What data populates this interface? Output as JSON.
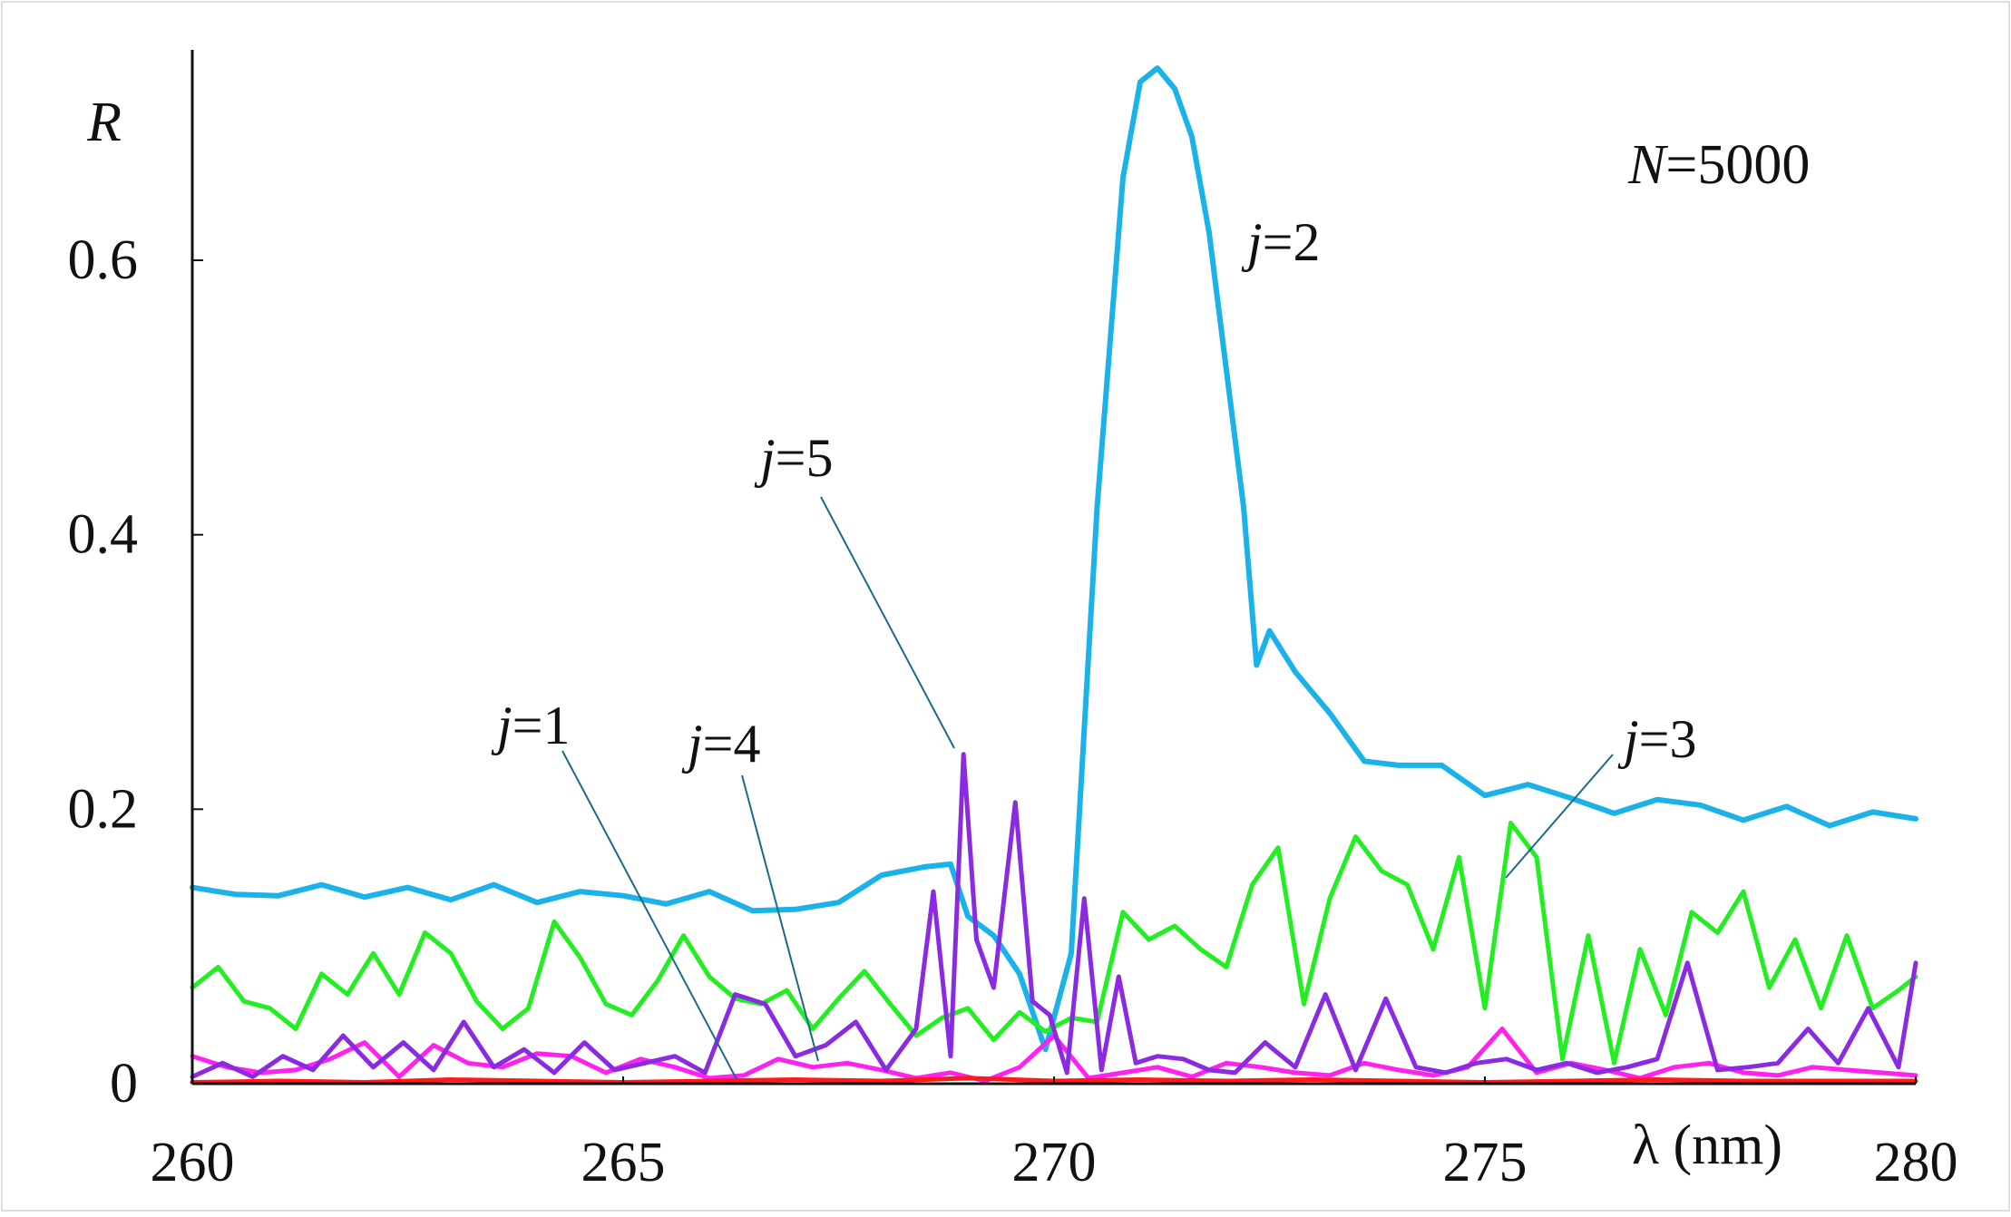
{
  "chart_data": {
    "type": "line",
    "xlabel": "λ (nm)",
    "ylabel": "R",
    "xlim": [
      260,
      280
    ],
    "ylim": [
      0,
      0.75
    ],
    "xticks": [
      "260",
      "265",
      "270",
      "275",
      "280"
    ],
    "yticks": [
      "0",
      "0.2",
      "0.4",
      "0.6"
    ],
    "annotation_text": "N=5000",
    "annotation": {
      "var": "N",
      "rest": "=5000"
    },
    "grid": false,
    "legend": "none",
    "series": [
      {
        "label": {
          "var": "j",
          "rest": "=1"
        },
        "color": "#ff1a1a",
        "x": [
          260,
          261,
          262,
          263,
          264,
          265,
          266,
          267,
          268,
          269,
          270,
          271,
          272,
          273,
          274,
          275,
          276,
          277,
          278,
          279,
          280
        ],
        "y": [
          0.001,
          0.002,
          0.001,
          0.003,
          0.002,
          0.001,
          0.002,
          0.003,
          0.002,
          0.004,
          0.002,
          0.003,
          0.002,
          0.003,
          0.002,
          0.001,
          0.002,
          0.003,
          0.002,
          0.002,
          0.002
        ]
      },
      {
        "label": {
          "var": "j",
          "rest": "=2"
        },
        "color": "#1ab2e8",
        "x": [
          260,
          260.5,
          261,
          261.5,
          262,
          262.5,
          263,
          263.5,
          264,
          264.5,
          265,
          265.5,
          266,
          266.5,
          267,
          267.5,
          268,
          268.5,
          268.8,
          269,
          269.3,
          269.6,
          269.9,
          270.2,
          270.5,
          270.8,
          271.0,
          271.2,
          271.4,
          271.6,
          271.8,
          272.0,
          272.2,
          272.35,
          272.5,
          272.8,
          273.2,
          273.6,
          274.0,
          274.5,
          275.0,
          275.5,
          276.0,
          276.5,
          277.0,
          277.5,
          278.0,
          278.5,
          279.0,
          279.5,
          280
        ],
        "y": [
          0.143,
          0.138,
          0.137,
          0.145,
          0.136,
          0.143,
          0.134,
          0.145,
          0.132,
          0.14,
          0.137,
          0.131,
          0.14,
          0.126,
          0.127,
          0.132,
          0.152,
          0.158,
          0.16,
          0.122,
          0.108,
          0.08,
          0.025,
          0.095,
          0.42,
          0.66,
          0.73,
          0.74,
          0.725,
          0.69,
          0.62,
          0.52,
          0.42,
          0.305,
          0.33,
          0.3,
          0.27,
          0.235,
          0.232,
          0.232,
          0.21,
          0.218,
          0.208,
          0.197,
          0.207,
          0.203,
          0.192,
          0.202,
          0.188,
          0.198,
          0.193
        ]
      },
      {
        "label": {
          "var": "j",
          "rest": "=3"
        },
        "color": "#22ee22",
        "x": [
          260,
          260.3,
          260.6,
          260.9,
          261.2,
          261.5,
          261.8,
          262.1,
          262.4,
          262.7,
          263.0,
          263.3,
          263.6,
          263.9,
          264.2,
          264.5,
          264.8,
          265.1,
          265.4,
          265.7,
          266.0,
          266.3,
          266.6,
          266.9,
          267.2,
          267.5,
          267.8,
          268.1,
          268.4,
          268.7,
          269.0,
          269.3,
          269.6,
          269.9,
          270.2,
          270.5,
          270.8,
          271.1,
          271.4,
          271.7,
          272.0,
          272.3,
          272.6,
          272.9,
          273.2,
          273.5,
          273.8,
          274.1,
          274.4,
          274.7,
          275.0,
          275.3,
          275.6,
          275.9,
          276.2,
          276.5,
          276.8,
          277.1,
          277.4,
          277.7,
          278.0,
          278.3,
          278.6,
          278.9,
          279.2,
          279.5,
          279.8,
          280
        ],
        "y": [
          0.07,
          0.085,
          0.06,
          0.055,
          0.04,
          0.08,
          0.065,
          0.095,
          0.065,
          0.11,
          0.095,
          0.06,
          0.04,
          0.055,
          0.118,
          0.092,
          0.058,
          0.05,
          0.075,
          0.108,
          0.078,
          0.062,
          0.058,
          0.068,
          0.04,
          0.062,
          0.082,
          0.058,
          0.035,
          0.048,
          0.055,
          0.032,
          0.052,
          0.038,
          0.048,
          0.045,
          0.125,
          0.105,
          0.115,
          0.098,
          0.085,
          0.145,
          0.172,
          0.058,
          0.135,
          0.18,
          0.155,
          0.145,
          0.098,
          0.165,
          0.055,
          0.19,
          0.165,
          0.018,
          0.108,
          0.015,
          0.098,
          0.05,
          0.125,
          0.11,
          0.14,
          0.07,
          0.105,
          0.055,
          0.108,
          0.055,
          0.068,
          0.078
        ]
      },
      {
        "label": {
          "var": "j",
          "rest": "=4"
        },
        "color": "#ff22ee",
        "x": [
          260,
          260.4,
          260.8,
          261.2,
          261.6,
          262.0,
          262.4,
          262.8,
          263.2,
          263.6,
          264.0,
          264.4,
          264.8,
          265.2,
          265.6,
          266.0,
          266.4,
          266.8,
          267.2,
          267.6,
          268.0,
          268.4,
          268.8,
          269.2,
          269.6,
          270.0,
          270.4,
          270.8,
          271.2,
          271.6,
          272.0,
          272.4,
          272.8,
          273.2,
          273.6,
          274.0,
          274.4,
          274.8,
          275.2,
          275.6,
          276.0,
          276.4,
          276.8,
          277.2,
          277.6,
          278.0,
          278.4,
          278.8,
          279.2,
          279.6,
          280
        ],
        "y": [
          0.02,
          0.012,
          0.008,
          0.01,
          0.018,
          0.03,
          0.005,
          0.028,
          0.015,
          0.012,
          0.022,
          0.02,
          0.008,
          0.018,
          0.012,
          0.004,
          0.006,
          0.018,
          0.012,
          0.015,
          0.01,
          0.004,
          0.008,
          0.002,
          0.012,
          0.035,
          0.004,
          0.008,
          0.012,
          0.005,
          0.015,
          0.012,
          0.008,
          0.006,
          0.015,
          0.01,
          0.006,
          0.012,
          0.04,
          0.008,
          0.015,
          0.01,
          0.004,
          0.012,
          0.015,
          0.008,
          0.006,
          0.012,
          0.01,
          0.008,
          0.006
        ]
      },
      {
        "label": {
          "var": "j",
          "rest": "=5"
        },
        "color": "#8a2be2",
        "x": [
          260,
          260.35,
          260.7,
          261.05,
          261.4,
          261.75,
          262.1,
          262.45,
          262.8,
          263.15,
          263.5,
          263.85,
          264.2,
          264.55,
          264.9,
          265.25,
          265.6,
          265.95,
          266.3,
          266.65,
          267.0,
          267.35,
          267.7,
          268.05,
          268.4,
          268.6,
          268.8,
          268.95,
          269.1,
          269.3,
          269.55,
          269.75,
          269.95,
          270.15,
          270.35,
          270.55,
          270.75,
          270.95,
          271.2,
          271.5,
          271.8,
          272.1,
          272.45,
          272.8,
          273.15,
          273.5,
          273.85,
          274.2,
          274.55,
          274.9,
          275.25,
          275.6,
          275.95,
          276.3,
          276.65,
          277.0,
          277.35,
          277.7,
          278.05,
          278.4,
          278.75,
          279.1,
          279.45,
          279.8,
          280
        ],
        "y": [
          0.005,
          0.015,
          0.005,
          0.02,
          0.01,
          0.035,
          0.012,
          0.03,
          0.01,
          0.045,
          0.012,
          0.025,
          0.008,
          0.03,
          0.01,
          0.015,
          0.02,
          0.008,
          0.065,
          0.058,
          0.02,
          0.028,
          0.045,
          0.01,
          0.04,
          0.14,
          0.02,
          0.24,
          0.105,
          0.07,
          0.205,
          0.06,
          0.05,
          0.008,
          0.135,
          0.01,
          0.078,
          0.015,
          0.02,
          0.018,
          0.01,
          0.008,
          0.03,
          0.012,
          0.065,
          0.01,
          0.062,
          0.012,
          0.008,
          0.015,
          0.018,
          0.01,
          0.015,
          0.008,
          0.012,
          0.018,
          0.088,
          0.01,
          0.012,
          0.015,
          0.04,
          0.015,
          0.055,
          0.012,
          0.088
        ]
      }
    ]
  }
}
